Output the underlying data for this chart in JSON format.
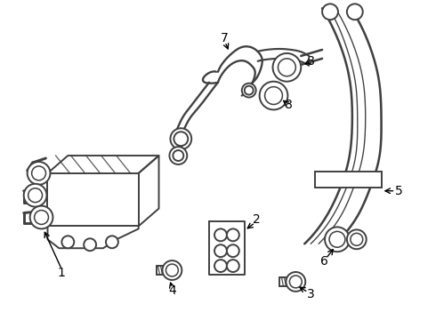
{
  "background_color": "#ffffff",
  "line_color": "#404040",
  "line_width": 1.4,
  "label_color": "#000000",
  "figsize": [
    4.9,
    3.6
  ],
  "dpi": 100
}
